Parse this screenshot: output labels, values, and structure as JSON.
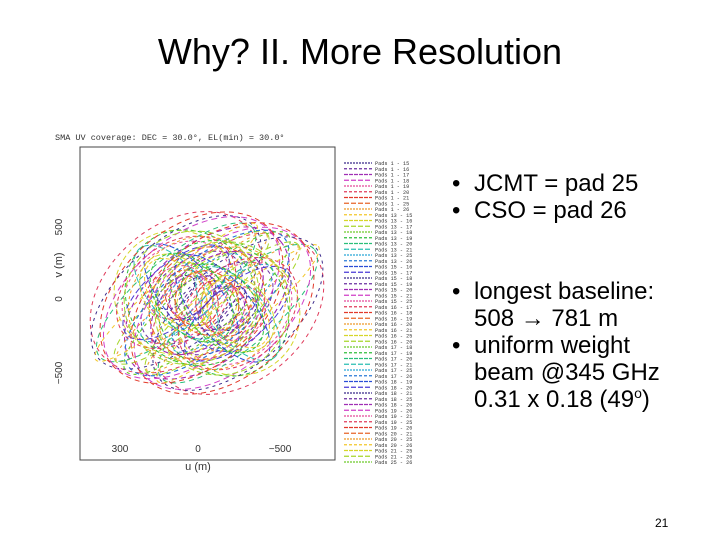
{
  "slide": {
    "title": "Why? II. More Resolution",
    "number": "21"
  },
  "figure": {
    "header": "SMA UV coverage: DEC = 30.0°, EL(min) = 30.0°",
    "axis_y_label": "v (m)",
    "axis_x_label": "u (m)",
    "y_ticks": [
      "500",
      "0",
      "−500"
    ],
    "x_ticks": [
      "300",
      "0",
      "−500"
    ],
    "legend": [
      "Pads 1 - 15",
      "Pads 1 - 16",
      "Pads 1 - 17",
      "Pads 1 - 18",
      "Pads 1 - 19",
      "Pads 1 - 20",
      "Pads 1 - 21",
      "Pads 1 - 25",
      "Pads 1 - 26",
      "Pads 13 - 15",
      "Pads 13 - 16",
      "Pads 13 - 17",
      "Pads 13 - 18",
      "Pads 13 - 19",
      "Pads 13 - 20",
      "Pads 13 - 21",
      "Pads 13 - 25",
      "Pads 13 - 26",
      "Pads 15 - 16",
      "Pads 15 - 17",
      "Pads 15 - 18",
      "Pads 15 - 19",
      "Pads 15 - 20",
      "Pads 15 - 21",
      "Pads 15 - 25",
      "Pads 16 - 17",
      "Pads 16 - 18",
      "Pads 16 - 19",
      "Pads 16 - 20",
      "Pads 16 - 21",
      "Pads 16 - 25",
      "Pads 16 - 26",
      "Pads 17 - 18",
      "Pads 17 - 19",
      "Pads 17 - 20",
      "Pads 17 - 21",
      "Pads 17 - 25",
      "Pads 17 - 26",
      "Pads 18 - 19",
      "Pads 18 - 20",
      "Pads 18 - 21",
      "Pads 18 - 25",
      "Pads 18 - 26",
      "Pads 19 - 20",
      "Pads 19 - 21",
      "Pads 19 - 25",
      "Pads 19 - 26",
      "Pads 20 - 21",
      "Pads 20 - 25",
      "Pads 20 - 26",
      "Pads 21 - 25",
      "Pads 21 - 26",
      "Pads 25 - 26"
    ],
    "colors": [
      "#3b2a8a",
      "#6a2fa0",
      "#a02fb5",
      "#d03fc8",
      "#e34a9a",
      "#e03a5a",
      "#e23a2a",
      "#e8662a",
      "#ee9a2a",
      "#f2c72a",
      "#d6d62a",
      "#a6d62a",
      "#6ecb2a",
      "#2fbf3a",
      "#2abf7a",
      "#2abfb2",
      "#2aa6d6",
      "#2a7ad6",
      "#2a4ed6",
      "#4a3ad6"
    ]
  },
  "bullets": {
    "jcmt": "JCMT = pad 25",
    "cso": "CSO = pad 26",
    "baseline_line1": "longest baseline:",
    "baseline_line2": "508 → 781 m",
    "beam_line1": "uniform weight",
    "beam_line2": "beam @345 GHz",
    "beam_line3_main": "0.31 x 0.18 (49",
    "beam_line3_sup": "o",
    "beam_line3_end": ")"
  }
}
